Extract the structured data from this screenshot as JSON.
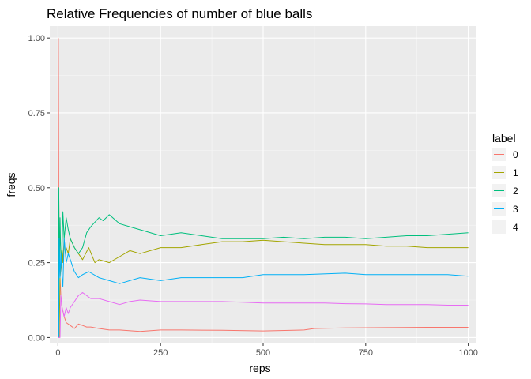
{
  "chart_data": {
    "type": "line",
    "title": "Relative Frequencies of number of blue balls",
    "xlabel": "reps",
    "ylabel": "freqs",
    "xlim": [
      -20,
      1020
    ],
    "ylim": [
      -0.02,
      1.04
    ],
    "x_ticks": [
      0,
      250,
      500,
      750,
      1000
    ],
    "x_tick_labels": [
      "0",
      "250",
      "500",
      "750",
      "1000"
    ],
    "y_ticks": [
      0.0,
      0.25,
      0.5,
      0.75,
      1.0
    ],
    "y_tick_labels": [
      "0.00",
      "0.25",
      "0.50",
      "0.75",
      "1.00"
    ],
    "grid": true,
    "legend_title": "label",
    "legend_position": "right",
    "background": "#ebebeb",
    "series": [
      {
        "name": "0",
        "color": "#F8766D",
        "x": [
          1,
          2,
          3,
          4,
          5,
          7,
          10,
          15,
          20,
          30,
          40,
          50,
          60,
          70,
          80,
          100,
          125,
          150,
          200,
          250,
          300,
          400,
          500,
          600,
          625,
          700,
          800,
          900,
          1000
        ],
        "y": [
          1.0,
          0.5,
          0.33,
          0.25,
          0.2,
          0.14,
          0.1,
          0.07,
          0.05,
          0.04,
          0.03,
          0.045,
          0.04,
          0.035,
          0.035,
          0.03,
          0.025,
          0.025,
          0.02,
          0.025,
          0.025,
          0.024,
          0.022,
          0.025,
          0.03,
          0.032,
          0.033,
          0.034,
          0.034
        ]
      },
      {
        "name": "1",
        "color": "#A3A500",
        "x": [
          1,
          2,
          3,
          5,
          8,
          10,
          12,
          15,
          18,
          20,
          25,
          30,
          40,
          50,
          60,
          75,
          90,
          100,
          125,
          150,
          175,
          200,
          250,
          300,
          350,
          400,
          450,
          500,
          550,
          600,
          650,
          700,
          750,
          800,
          850,
          900,
          950,
          1000
        ],
        "y": [
          0.0,
          0.0,
          0.0,
          0.2,
          0.25,
          0.3,
          0.25,
          0.33,
          0.28,
          0.3,
          0.28,
          0.33,
          0.3,
          0.28,
          0.26,
          0.3,
          0.25,
          0.26,
          0.25,
          0.27,
          0.29,
          0.28,
          0.3,
          0.3,
          0.31,
          0.32,
          0.32,
          0.325,
          0.32,
          0.315,
          0.31,
          0.31,
          0.31,
          0.305,
          0.305,
          0.3,
          0.3,
          0.3
        ]
      },
      {
        "name": "2",
        "color": "#00BF7D",
        "x": [
          1,
          2,
          3,
          4,
          5,
          6,
          8,
          10,
          12,
          15,
          20,
          25,
          30,
          40,
          50,
          60,
          70,
          80,
          100,
          110,
          125,
          150,
          175,
          200,
          250,
          300,
          350,
          400,
          450,
          500,
          550,
          600,
          650,
          700,
          750,
          800,
          850,
          900,
          950,
          1000
        ],
        "y": [
          0.0,
          0.5,
          0.33,
          0.25,
          0.4,
          0.33,
          0.25,
          0.3,
          0.42,
          0.33,
          0.4,
          0.36,
          0.33,
          0.3,
          0.28,
          0.3,
          0.35,
          0.37,
          0.4,
          0.39,
          0.41,
          0.38,
          0.37,
          0.36,
          0.34,
          0.35,
          0.34,
          0.33,
          0.33,
          0.33,
          0.335,
          0.33,
          0.335,
          0.335,
          0.33,
          0.335,
          0.34,
          0.34,
          0.345,
          0.35
        ]
      },
      {
        "name": "3",
        "color": "#00B0F6",
        "x": [
          1,
          2,
          3,
          4,
          5,
          7,
          10,
          12,
          15,
          20,
          25,
          30,
          40,
          50,
          60,
          75,
          100,
          125,
          150,
          200,
          250,
          300,
          400,
          450,
          500,
          600,
          700,
          750,
          800,
          900,
          950,
          1000
        ],
        "y": [
          0.0,
          0.0,
          0.33,
          0.25,
          0.2,
          0.28,
          0.2,
          0.17,
          0.33,
          0.25,
          0.28,
          0.26,
          0.22,
          0.2,
          0.21,
          0.22,
          0.2,
          0.19,
          0.18,
          0.2,
          0.19,
          0.2,
          0.2,
          0.2,
          0.21,
          0.21,
          0.215,
          0.21,
          0.21,
          0.21,
          0.21,
          0.205
        ]
      },
      {
        "name": "4",
        "color": "#E76BF3",
        "x": [
          1,
          3,
          5,
          7,
          10,
          15,
          20,
          25,
          30,
          40,
          50,
          60,
          70,
          80,
          100,
          125,
          150,
          175,
          200,
          250,
          300,
          350,
          400,
          450,
          500,
          550,
          600,
          650,
          700,
          750,
          800,
          850,
          900,
          950,
          1000
        ],
        "y": [
          0.0,
          0.0,
          0.0,
          0.14,
          0.1,
          0.07,
          0.1,
          0.08,
          0.1,
          0.12,
          0.14,
          0.15,
          0.14,
          0.13,
          0.13,
          0.12,
          0.11,
          0.12,
          0.125,
          0.12,
          0.12,
          0.12,
          0.12,
          0.118,
          0.115,
          0.115,
          0.115,
          0.115,
          0.113,
          0.112,
          0.11,
          0.11,
          0.11,
          0.108,
          0.108
        ]
      }
    ]
  }
}
